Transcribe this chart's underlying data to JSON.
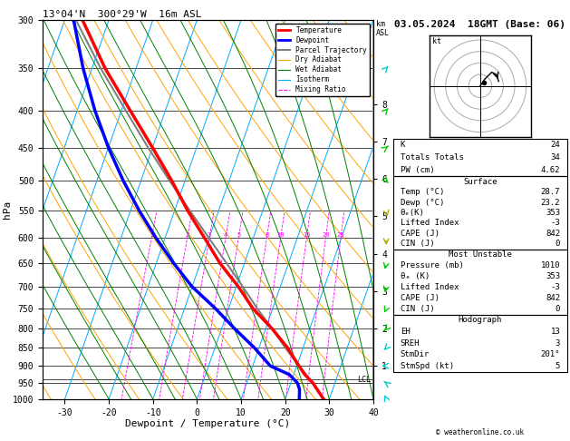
{
  "title_left": "13°04'N  300°29'W  16m ASL",
  "title_right": "03.05.2024  18GMT (Base: 06)",
  "xlabel": "Dewpoint / Temperature (°C)",
  "ylabel_left": "hPa",
  "pressure_ticks": [
    300,
    350,
    400,
    450,
    500,
    550,
    600,
    650,
    700,
    750,
    800,
    850,
    900,
    950,
    1000
  ],
  "temp_xticks": [
    -30,
    -20,
    -10,
    0,
    10,
    20,
    30,
    40
  ],
  "TMIN": -35,
  "TMAX": 40,
  "PMIN": 300,
  "PMAX": 1000,
  "skew_amount": 30,
  "lcl_pressure": 940,
  "mixing_ratio_values": [
    1,
    2,
    3,
    4,
    5,
    8,
    10,
    15,
    20,
    25
  ],
  "colors": {
    "temperature": "#ff0000",
    "dewpoint": "#0000ff",
    "parcel": "#808080",
    "dry_adiabat": "#ffa500",
    "wet_adiabat": "#008000",
    "isotherm": "#00aaff",
    "mixing_ratio": "#ff00ff",
    "background": "#ffffff",
    "grid": "#000000"
  },
  "temperature_profile": {
    "pressure": [
      1000,
      970,
      950,
      925,
      900,
      850,
      800,
      750,
      700,
      650,
      600,
      550,
      500,
      450,
      400,
      350,
      300
    ],
    "temp": [
      28.7,
      26.5,
      25.0,
      22.5,
      20.5,
      16.5,
      11.5,
      5.5,
      0.5,
      -5.5,
      -11.0,
      -17.0,
      -23.0,
      -30.0,
      -38.0,
      -47.0,
      -56.0
    ]
  },
  "dewpoint_profile": {
    "pressure": [
      1000,
      970,
      950,
      925,
      900,
      850,
      800,
      750,
      700,
      650,
      600,
      550,
      500,
      450,
      400,
      350,
      300
    ],
    "dewp": [
      23.2,
      22.5,
      21.5,
      19.0,
      14.0,
      9.0,
      3.0,
      -3.0,
      -10.0,
      -16.0,
      -22.0,
      -28.0,
      -34.0,
      -40.0,
      -46.0,
      -52.0,
      -58.0
    ]
  },
  "parcel_profile": {
    "pressure": [
      1000,
      950,
      940,
      925,
      900,
      850,
      800,
      750,
      700,
      650,
      600,
      550,
      500,
      450,
      400,
      350,
      300
    ],
    "temp": [
      28.7,
      25.0,
      24.0,
      22.8,
      20.5,
      16.0,
      11.5,
      6.5,
      1.5,
      -4.0,
      -10.0,
      -16.5,
      -23.5,
      -31.0,
      -39.0,
      -48.0,
      -57.5
    ]
  },
  "legend_entries": [
    {
      "label": "Temperature",
      "color": "#ff0000",
      "lw": 2.0,
      "ls": "-"
    },
    {
      "label": "Dewpoint",
      "color": "#0000ff",
      "lw": 2.0,
      "ls": "-"
    },
    {
      "label": "Parcel Trajectory",
      "color": "#808080",
      "lw": 1.5,
      "ls": "-"
    },
    {
      "label": "Dry Adiabat",
      "color": "#ffa500",
      "lw": 0.8,
      "ls": "-"
    },
    {
      "label": "Wet Adiabat",
      "color": "#008000",
      "lw": 0.8,
      "ls": "-"
    },
    {
      "label": "Isotherm",
      "color": "#00aaff",
      "lw": 0.8,
      "ls": "-"
    },
    {
      "label": "Mixing Ratio",
      "color": "#ff00ff",
      "lw": 0.8,
      "ls": "--"
    }
  ],
  "info_K": 24,
  "info_TT": 34,
  "info_PW": 4.62,
  "surf_temp": 28.7,
  "surf_dewp": 23.2,
  "surf_theta_e": 353,
  "surf_li": -3,
  "surf_cape": 842,
  "surf_cin": 0,
  "mu_pres": 1010,
  "mu_theta_e": 353,
  "mu_li": -3,
  "mu_cape": 842,
  "mu_cin": 0,
  "hodo_eh": 13,
  "hodo_sreh": 3,
  "hodo_stmdir": "201°",
  "hodo_stmspd": 5,
  "wind_barbs": [
    {
      "p": 300,
      "color": "#00cccc",
      "u": 8,
      "v": -2
    },
    {
      "p": 350,
      "color": "#00cccc",
      "u": 6,
      "v": -3
    },
    {
      "p": 400,
      "color": "#00cc00",
      "u": 4,
      "v": -2
    },
    {
      "p": 450,
      "color": "#00cc00",
      "u": 3,
      "v": -1
    },
    {
      "p": 500,
      "color": "#00cc00",
      "u": 2,
      "v": 1
    },
    {
      "p": 550,
      "color": "#aaaa00",
      "u": 1,
      "v": 2
    },
    {
      "p": 600,
      "color": "#aaaa00",
      "u": 0,
      "v": 2
    },
    {
      "p": 650,
      "color": "#00cc00",
      "u": -1,
      "v": 2
    },
    {
      "p": 700,
      "color": "#00cc00",
      "u": -1,
      "v": 2
    },
    {
      "p": 750,
      "color": "#00cc00",
      "u": -1,
      "v": 1
    },
    {
      "p": 800,
      "color": "#00cc00",
      "u": -2,
      "v": 1
    },
    {
      "p": 850,
      "color": "#00cccc",
      "u": -2,
      "v": 1
    },
    {
      "p": 900,
      "color": "#00cccc",
      "u": -3,
      "v": 0
    },
    {
      "p": 950,
      "color": "#00cccc",
      "u": -3,
      "v": -1
    },
    {
      "p": 1000,
      "color": "#00cccc",
      "u": -2,
      "v": -2
    }
  ]
}
